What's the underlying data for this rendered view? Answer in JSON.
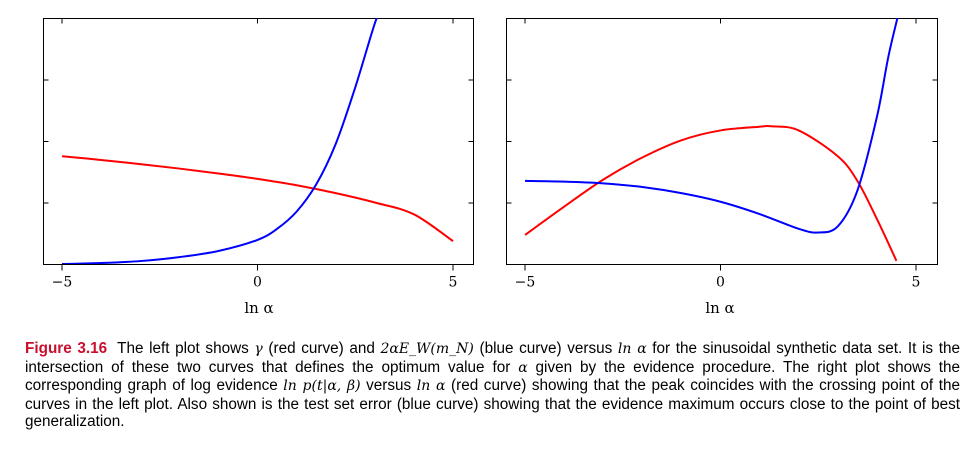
{
  "chart_data": [
    {
      "type": "line",
      "panel": "left",
      "xlabel": "ln α",
      "ylabel": "",
      "xlim": [
        -5,
        5
      ],
      "ylim": [
        0,
        10
      ],
      "xticks": [
        -5,
        0,
        5
      ],
      "xtick_labels": [
        "−5",
        "0",
        "5"
      ],
      "yticks": [
        2.5,
        5,
        7.5
      ],
      "grid": false,
      "series": [
        {
          "color": "#ff0000",
          "x": [
            -5,
            -4,
            -3,
            -2,
            -1,
            0,
            1,
            2,
            3,
            4,
            5
          ],
          "y": [
            4.4,
            4.25,
            4.08,
            3.9,
            3.7,
            3.48,
            3.22,
            2.9,
            2.52,
            2.04,
            0.95
          ]
        },
        {
          "color": "#0000ff",
          "x": [
            -5,
            -4,
            -3,
            -2,
            -1,
            0,
            0.5,
            1,
            1.5,
            2,
            2.5,
            3,
            3.2
          ],
          "y": [
            0.02,
            0.06,
            0.14,
            0.3,
            0.55,
            1.0,
            1.45,
            2.15,
            3.25,
            4.9,
            7.2,
            9.8,
            10.5
          ]
        }
      ]
    },
    {
      "type": "line",
      "panel": "right",
      "xlabel": "ln α",
      "ylabel": "",
      "xlim": [
        -5,
        5
      ],
      "ylim": [
        0,
        10
      ],
      "xticks": [
        -5,
        0,
        5
      ],
      "xtick_labels": [
        "−5",
        "0",
        "5"
      ],
      "yticks": [
        2.5,
        5,
        7.5
      ],
      "grid": false,
      "series": [
        {
          "color": "#ff0000",
          "x": [
            -5,
            -4,
            -3,
            -2,
            -1,
            0,
            1,
            1.3,
            2,
            3,
            3.5,
            4,
            4.5
          ],
          "y": [
            1.2,
            2.35,
            3.45,
            4.35,
            5.05,
            5.45,
            5.6,
            5.62,
            5.45,
            4.4,
            3.4,
            1.85,
            0.15
          ]
        },
        {
          "color": "#0000ff",
          "x": [
            -5,
            -4,
            -3,
            -2,
            -1,
            0,
            1,
            2,
            2.5,
            3,
            3.5,
            4,
            4.3,
            4.6
          ],
          "y": [
            3.4,
            3.37,
            3.3,
            3.15,
            2.9,
            2.55,
            2.05,
            1.45,
            1.3,
            1.55,
            3.0,
            6.0,
            8.5,
            10.5
          ]
        }
      ]
    }
  ],
  "caption": {
    "label": "Figure 3.16",
    "text_a": "The left plot shows ",
    "math_gamma": "γ",
    "text_b": " (red curve) and ",
    "math_ew": "2αE_W(m_N)",
    "text_c": " (blue curve) versus ",
    "math_lna1": "ln α",
    "text_d": " for the sinusoidal synthetic data set. It is the intersection of these two curves that defines the optimum value for ",
    "math_alpha": "α",
    "text_e": " given by the evidence procedure. The right plot shows the corresponding graph of log evidence ",
    "math_evidence": "ln p(t|α, β)",
    "text_f": " versus ",
    "math_lna2": "ln α",
    "text_g": " (red curve) showing that the peak coincides with the crossing point of the curves in the left plot. Also shown is the test set error (blue curve) showing that the evidence maximum occurs close to the point of best generalization."
  }
}
